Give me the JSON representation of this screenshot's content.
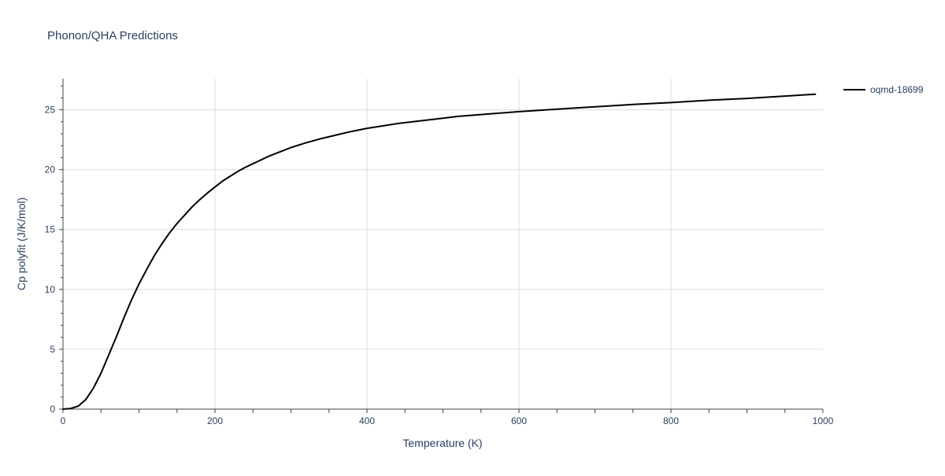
{
  "chart_data": {
    "type": "line",
    "title": "Phonon/QHA Predictions",
    "xlabel": "Temperature (K)",
    "ylabel": "Cp polyfit (J/K/mol)",
    "xlim": [
      0,
      1000
    ],
    "ylim": [
      0,
      27.6
    ],
    "xticks": [
      0,
      200,
      400,
      600,
      800,
      1000
    ],
    "yticks": [
      0,
      5,
      10,
      15,
      20,
      25
    ],
    "xtick_labels": [
      "0",
      "200",
      "400",
      "600",
      "800",
      "1000"
    ],
    "ytick_labels": [
      "0",
      "5",
      "10",
      "15",
      "20",
      "25"
    ],
    "grid": true,
    "legend_position": "top-right",
    "series": [
      {
        "name": "oqmd-18699",
        "color": "#000000",
        "x": [
          0,
          10,
          20,
          30,
          40,
          50,
          60,
          70,
          80,
          90,
          100,
          110,
          120,
          130,
          140,
          150,
          160,
          170,
          180,
          190,
          200,
          210,
          220,
          230,
          240,
          250,
          260,
          270,
          280,
          290,
          300,
          320,
          340,
          360,
          380,
          400,
          420,
          440,
          460,
          480,
          500,
          520,
          540,
          560,
          580,
          600,
          650,
          700,
          750,
          800,
          850,
          900,
          950,
          990
        ],
        "y": [
          0.0,
          0.05,
          0.25,
          0.8,
          1.75,
          3.0,
          4.5,
          6.0,
          7.6,
          9.1,
          10.45,
          11.65,
          12.8,
          13.8,
          14.7,
          15.5,
          16.2,
          16.9,
          17.5,
          18.05,
          18.55,
          19.05,
          19.45,
          19.85,
          20.2,
          20.5,
          20.8,
          21.1,
          21.35,
          21.6,
          21.85,
          22.25,
          22.6,
          22.9,
          23.2,
          23.45,
          23.65,
          23.85,
          24.0,
          24.15,
          24.3,
          24.45,
          24.55,
          24.65,
          24.75,
          24.85,
          25.05,
          25.25,
          25.45,
          25.6,
          25.8,
          25.95,
          26.15,
          26.3
        ]
      }
    ]
  }
}
